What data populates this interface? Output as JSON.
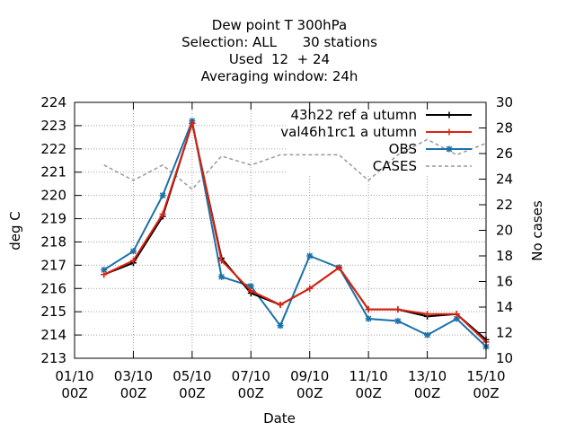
{
  "chart_data": {
    "type": "line",
    "title_lines": [
      "Dew point T 300hPa",
      "Selection: ALL      30 stations",
      "Used  12  + 24",
      "Averaging window: 24h"
    ],
    "xlabel": "Date",
    "ylabel": "deg C",
    "y2label": "No cases",
    "xlim": [
      0,
      14
    ],
    "ylim": [
      213,
      224
    ],
    "y2lim": [
      10,
      30
    ],
    "x_ticks": [
      {
        "x": 0,
        "label": [
          "01/10",
          "00Z"
        ]
      },
      {
        "x": 2,
        "label": [
          "03/10",
          "00Z"
        ]
      },
      {
        "x": 4,
        "label": [
          "05/10",
          "00Z"
        ]
      },
      {
        "x": 6,
        "label": [
          "07/10",
          "00Z"
        ]
      },
      {
        "x": 8,
        "label": [
          "09/10",
          "00Z"
        ]
      },
      {
        "x": 10,
        "label": [
          "11/10",
          "00Z"
        ]
      },
      {
        "x": 12,
        "label": [
          "13/10",
          "00Z"
        ]
      },
      {
        "x": 14,
        "label": [
          "15/10",
          "00Z"
        ]
      }
    ],
    "y_ticks": [
      213,
      214,
      215,
      216,
      217,
      218,
      219,
      220,
      221,
      222,
      223,
      224
    ],
    "y2_ticks": [
      10,
      12,
      14,
      16,
      18,
      20,
      22,
      24,
      26,
      28,
      30
    ],
    "grid": true,
    "legend_position": "top-right",
    "series": [
      {
        "name": "43h22_ref_autumn",
        "legend_label": "43h22 ref a utumn",
        "color": "#000000",
        "marker": "plus",
        "axis": "left",
        "x": [
          1,
          2,
          3,
          4,
          5,
          6,
          7,
          8,
          9,
          10,
          11,
          12,
          13,
          14
        ],
        "y": [
          216.6,
          217.1,
          219.1,
          223.1,
          217.3,
          215.8,
          215.3,
          216.0,
          216.9,
          215.1,
          215.1,
          214.8,
          214.9,
          213.8
        ]
      },
      {
        "name": "val46h1rc1_autumn",
        "legend_label": "val46h1rc1 a utumn",
        "color": "#dd2211",
        "marker": "plus",
        "axis": "left",
        "x": [
          1,
          2,
          3,
          4,
          5,
          6,
          7,
          8,
          9,
          10,
          11,
          12,
          13,
          14
        ],
        "y": [
          216.6,
          217.2,
          219.2,
          223.1,
          217.2,
          215.9,
          215.3,
          216.0,
          216.9,
          215.1,
          215.1,
          214.9,
          214.9,
          213.7
        ]
      },
      {
        "name": "OBS",
        "legend_label": "OBS",
        "color": "#1a72a8",
        "marker": "star",
        "axis": "left",
        "x": [
          1,
          2,
          3,
          4,
          5,
          6,
          7,
          8,
          9,
          10,
          11,
          12,
          13,
          14
        ],
        "y": [
          216.8,
          217.6,
          220.0,
          223.2,
          216.5,
          216.1,
          214.4,
          217.4,
          216.9,
          214.7,
          214.6,
          214.0,
          214.7,
          213.5
        ]
      },
      {
        "name": "CASES",
        "legend_label": "CASES",
        "color": "#999999",
        "dashed": true,
        "axis": "right",
        "x": [
          1,
          2,
          3,
          4,
          5,
          6,
          7,
          8,
          9,
          10,
          11,
          12,
          13,
          14
        ],
        "y": [
          25.1,
          23.9,
          25.1,
          23.2,
          25.8,
          25.1,
          25.9,
          25.9,
          25.9,
          23.9,
          25.9,
          27.1,
          25.9,
          26.8
        ]
      }
    ]
  }
}
